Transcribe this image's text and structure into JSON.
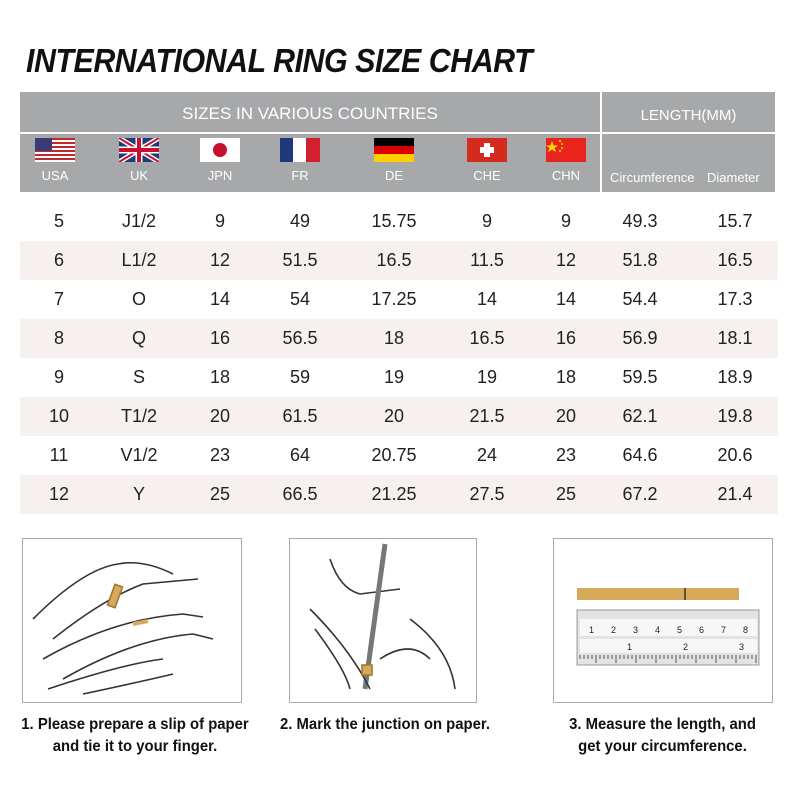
{
  "title": "INTERNATIONAL RING SIZE CHART",
  "header": {
    "sizes_label": "SIZES IN VARIOUS COUNTRIES",
    "length_label": "LENGTH(MM)",
    "countries": [
      {
        "code": "USA",
        "flag": "us-flag"
      },
      {
        "code": "UK",
        "flag": "uk-flag"
      },
      {
        "code": "JPN",
        "flag": "japan-flag"
      },
      {
        "code": "FR",
        "flag": "france-flag"
      },
      {
        "code": "DE",
        "flag": "germany-flag"
      },
      {
        "code": "CHE",
        "flag": "switzerland-flag"
      },
      {
        "code": "CHN",
        "flag": "china-flag"
      }
    ],
    "length_cols": [
      "Circumference",
      "Diameter"
    ]
  },
  "rows": [
    [
      "5",
      "J1/2",
      "9",
      "49",
      "15.75",
      "9",
      "9",
      "49.3",
      "15.7"
    ],
    [
      "6",
      "L1/2",
      "12",
      "51.5",
      "16.5",
      "11.5",
      "12",
      "51.8",
      "16.5"
    ],
    [
      "7",
      "O",
      "14",
      "54",
      "17.25",
      "14",
      "14",
      "54.4",
      "17.3"
    ],
    [
      "8",
      "Q",
      "16",
      "56.5",
      "18",
      "16.5",
      "16",
      "56.9",
      "18.1"
    ],
    [
      "9",
      "S",
      "18",
      "59",
      "19",
      "19",
      "18",
      "59.5",
      "18.9"
    ],
    [
      "10",
      "T1/2",
      "20",
      "61.5",
      "20",
      "21.5",
      "20",
      "62.1",
      "19.8"
    ],
    [
      "11",
      "V1/2",
      "23",
      "64",
      "20.75",
      "24",
      "23",
      "64.6",
      "20.6"
    ],
    [
      "12",
      "Y",
      "25",
      "66.5",
      "21.25",
      "27.5",
      "25",
      "67.2",
      "21.4"
    ]
  ],
  "steps": [
    {
      "line1": "1. Please prepare a slip of paper",
      "line2": "and tie it to your finger."
    },
    {
      "line1": "2. Mark the junction on paper.",
      "line2": ""
    },
    {
      "line1": "3. Measure the length, and",
      "line2": "get your circumference."
    }
  ],
  "ruler": {
    "cm_ticks": [
      "1",
      "2",
      "3",
      "4",
      "5",
      "6",
      "7",
      "8"
    ],
    "inch_ticks": [
      "1",
      "2",
      "3"
    ]
  },
  "colors": {
    "header_bg": "#a7a8aa",
    "row_alt": "#f6f1ee",
    "paper_strip": "#d6aa5a"
  }
}
